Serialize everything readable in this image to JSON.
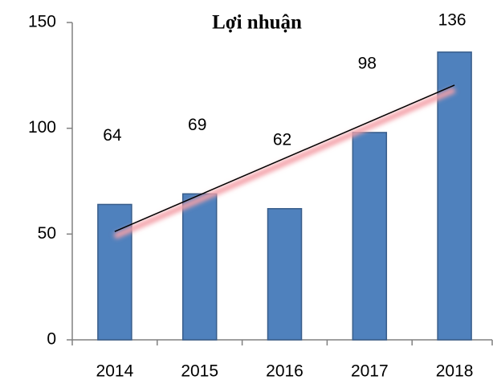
{
  "chart_data": {
    "type": "bar",
    "title": "Lợi nhuận",
    "categories": [
      "2014",
      "2015",
      "2016",
      "2017",
      "2018"
    ],
    "values": [
      64,
      69,
      62,
      98,
      136
    ],
    "color": "#4f81bd",
    "ylim": [
      0,
      150
    ],
    "yticks": [
      0,
      50,
      100,
      150
    ],
    "trendline": "linear"
  }
}
